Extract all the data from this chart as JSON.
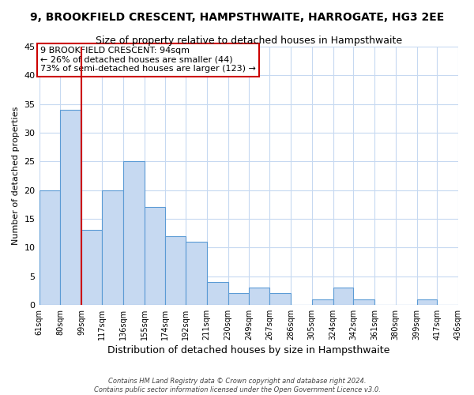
{
  "title": "9, BROOKFIELD CRESCENT, HAMPSTHWAITE, HARROGATE, HG3 2EE",
  "subtitle": "Size of property relative to detached houses in Hampsthwaite",
  "xlabel": "Distribution of detached houses by size in Hampsthwaite",
  "ylabel": "Number of detached properties",
  "bin_edges": [
    61,
    80,
    99,
    117,
    136,
    155,
    174,
    192,
    211,
    230,
    249,
    267,
    286,
    305,
    324,
    342,
    361,
    380,
    399,
    417,
    436
  ],
  "bin_labels": [
    "61sqm",
    "80sqm",
    "99sqm",
    "117sqm",
    "136sqm",
    "155sqm",
    "174sqm",
    "192sqm",
    "211sqm",
    "230sqm",
    "249sqm",
    "267sqm",
    "286sqm",
    "305sqm",
    "324sqm",
    "342sqm",
    "361sqm",
    "380sqm",
    "399sqm",
    "417sqm",
    "436sqm"
  ],
  "counts": [
    20,
    34,
    13,
    20,
    25,
    17,
    12,
    11,
    4,
    2,
    3,
    2,
    0,
    1,
    3,
    1,
    0,
    0,
    1,
    0
  ],
  "bar_color": "#c6d9f1",
  "bar_edge_color": "#5b9bd5",
  "vline_color": "#cc0000",
  "annotation_text": "9 BROOKFIELD CRESCENT: 94sqm\n← 26% of detached houses are smaller (44)\n73% of semi-detached houses are larger (123) →",
  "annotation_box_color": "#ffffff",
  "annotation_box_edge_color": "#cc0000",
  "ylim": [
    0,
    45
  ],
  "yticks": [
    0,
    5,
    10,
    15,
    20,
    25,
    30,
    35,
    40,
    45
  ],
  "grid_color": "#c6d9f1",
  "footer_line1": "Contains HM Land Registry data © Crown copyright and database right 2024.",
  "footer_line2": "Contains public sector information licensed under the Open Government Licence v3.0.",
  "background_color": "#ffffff",
  "fig_width": 6.0,
  "fig_height": 5.0
}
